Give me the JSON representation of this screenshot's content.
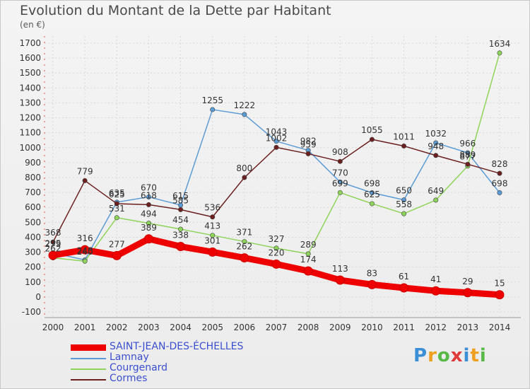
{
  "title": "Evolution du Montant de la Dette par Habitant",
  "unit": "(en €)",
  "logo": [
    "P",
    "r",
    "o",
    "x",
    "i",
    "t",
    "i"
  ],
  "logo_colors": [
    "#3a8fd6",
    "#f0a020",
    "#58b848",
    "#e03a3a",
    "#3a8fd6",
    "#f0a020",
    "#58b848"
  ],
  "chart_data": {
    "type": "line",
    "x": [
      "2000",
      "2001",
      "2002",
      "2003",
      "2004",
      "2005",
      "2006",
      "2007",
      "2008",
      "2009",
      "2010",
      "2011",
      "2012",
      "2013",
      "2014"
    ],
    "yticks": [
      "1700",
      "1600",
      "1500",
      "1400",
      "1300",
      "1200",
      "1100",
      "1000",
      "900",
      "800",
      "700",
      "600",
      "500",
      "400",
      "300",
      "200",
      "100",
      "0",
      "-100"
    ],
    "ylim": [
      -100,
      1700
    ],
    "grid": true,
    "legend": "bottom-left",
    "series": [
      {
        "name": "SAINT-JEAN-DES-ÉCHELLES",
        "color": "#ee0000",
        "values": [
          279,
          316,
          277,
          389,
          338,
          301,
          262,
          220,
          174,
          113,
          83,
          61,
          41,
          29,
          15
        ]
      },
      {
        "name": "Lamnay",
        "color": "#5b9bd5",
        "values": [
          295,
          248,
          635,
          670,
          615,
          1255,
          1222,
          1043,
          982,
          770,
          698,
          650,
          1032,
          966,
          698
        ]
      },
      {
        "name": "Courgenard",
        "color": "#8fd45a",
        "values": [
          262,
          240,
          531,
          494,
          454,
          413,
          371,
          327,
          289,
          699,
          625,
          558,
          649,
          877,
          1634
        ]
      },
      {
        "name": "Cormes",
        "color": "#6b1f1f",
        "values": [
          368,
          779,
          625,
          618,
          585,
          536,
          800,
          1002,
          959,
          908,
          1055,
          1011,
          948,
          889,
          828
        ]
      }
    ]
  }
}
